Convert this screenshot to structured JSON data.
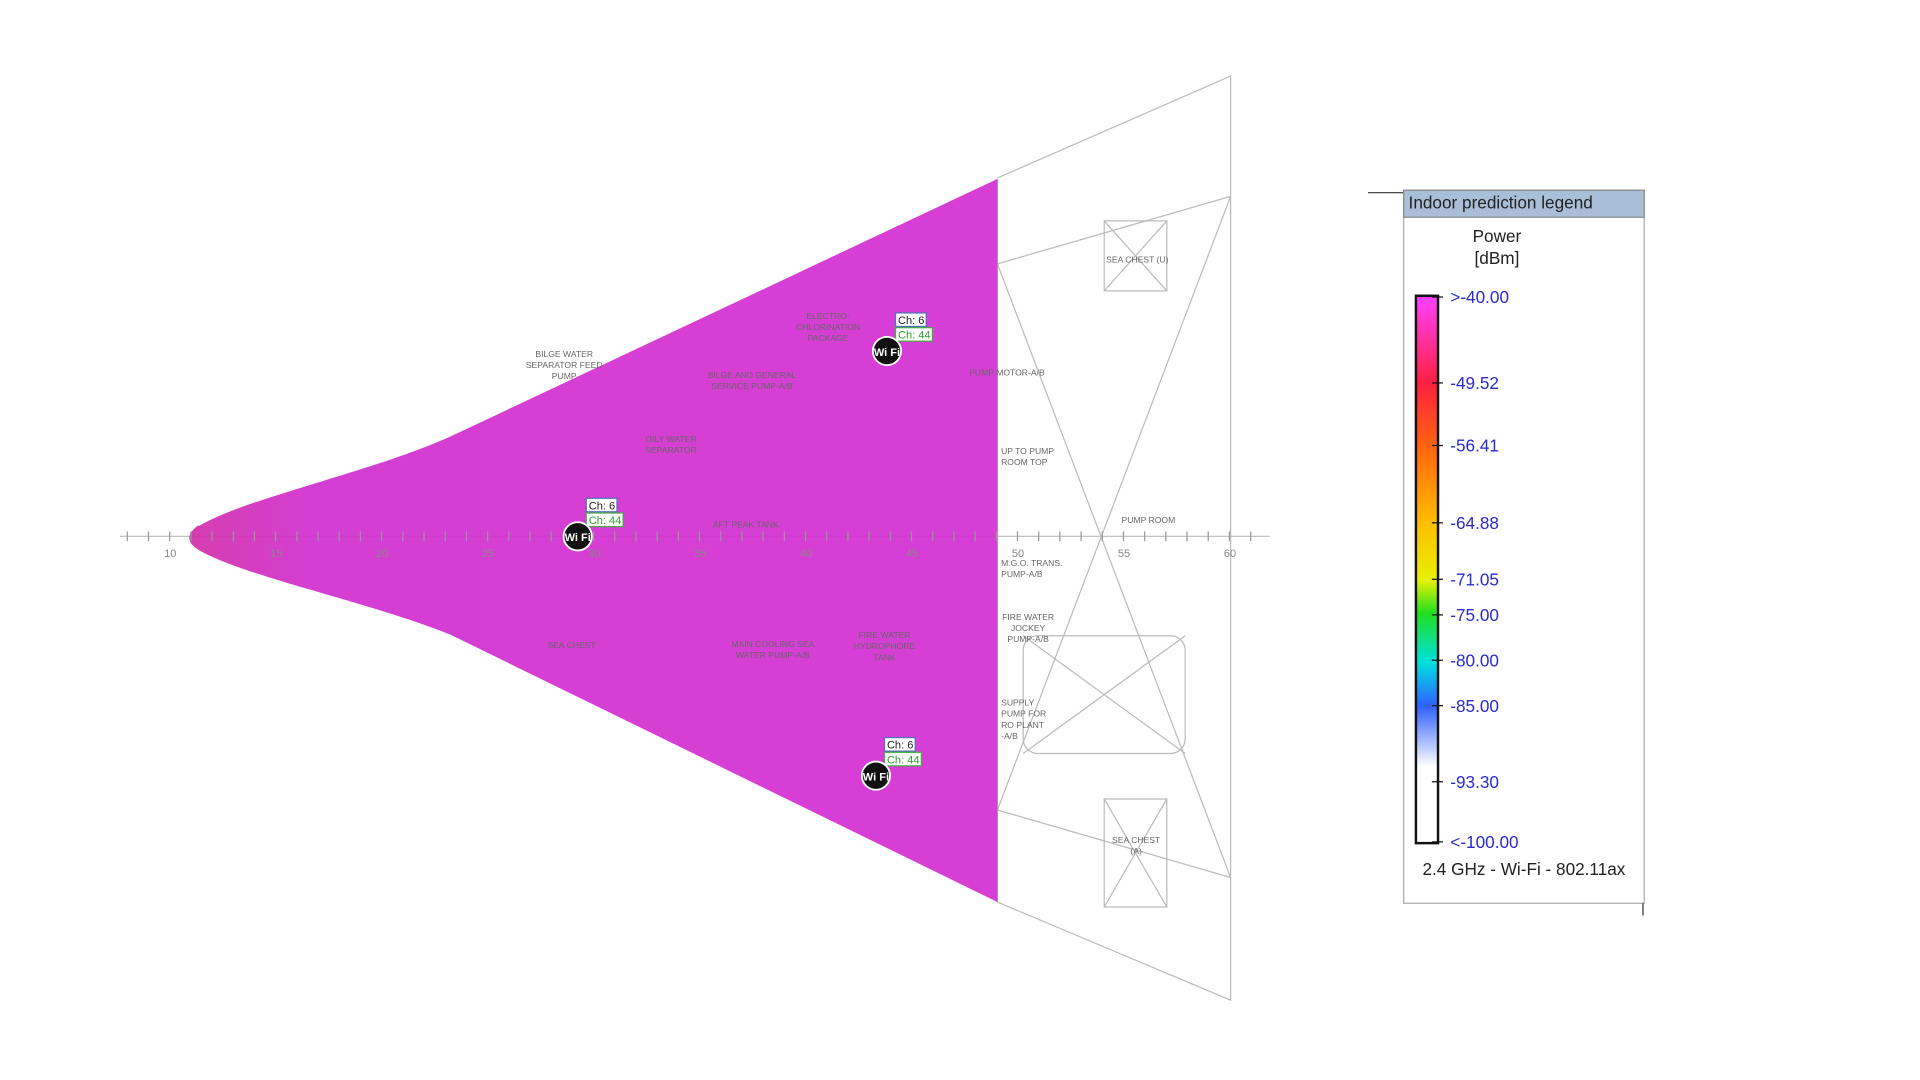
{
  "plan": {
    "labels": [
      [
        "BILGE WATER",
        "SEPARATOR FEED",
        "PUMP"
      ],
      [
        "SEA CHEST (U)"
      ],
      [
        "UP TO PUMP",
        "ROOM TOP"
      ],
      [
        "PUMP ROOM"
      ],
      [
        "M.G.O. TRANS.",
        "PUMP-A/B"
      ],
      [
        "FIRE WATER",
        "JOCKEY",
        "PUMP-A/B"
      ],
      [
        "SUPPLY",
        "PUMP FOR",
        "RO PLANT",
        "-A/B"
      ],
      [
        "SEA CHEST",
        "(A)"
      ],
      [
        "PUMP MOTOR-A/B"
      ],
      [
        "ELECTRO-",
        "CHLORINATION",
        "PACKAGE"
      ],
      [
        "BILGE AND GENERAL",
        "SERVICE PUMP-A/B"
      ],
      [
        "OILY WATER",
        "SEPARATOR"
      ],
      [
        "AFT PEAK TANK"
      ],
      [
        "SEA CHEST"
      ],
      [
        "FIRE WATER",
        "HYDROPHORE",
        "TANK"
      ],
      [
        "MAIN COOLING SEA",
        "WATER PUMP-A/B"
      ]
    ],
    "axis": [
      "10",
      "15",
      "20",
      "25",
      "30",
      "35",
      "40",
      "45",
      "50",
      "55",
      "60"
    ]
  },
  "access_points": [
    {
      "icon": "Wi Fi",
      "channel_24": "Ch: 6",
      "channel_5": "Ch: 44"
    },
    {
      "icon": "Wi Fi",
      "channel_24": "Ch: 6",
      "channel_5": "Ch: 44"
    },
    {
      "icon": "Wi Fi",
      "channel_24": "Ch: 6",
      "channel_5": "Ch: 44"
    }
  ],
  "legend": {
    "title": "Indoor prediction legend",
    "quantity": "Power",
    "unit": "[dBm]",
    "ticks": [
      ">-40.00",
      "-49.52",
      "-56.41",
      "-64.88",
      "-71.05",
      "-75.00",
      "-80.00",
      "-85.00",
      "-93.30",
      "<-100.00"
    ],
    "band": "2.4 GHz - Wi-Fi - 802.11ax"
  }
}
